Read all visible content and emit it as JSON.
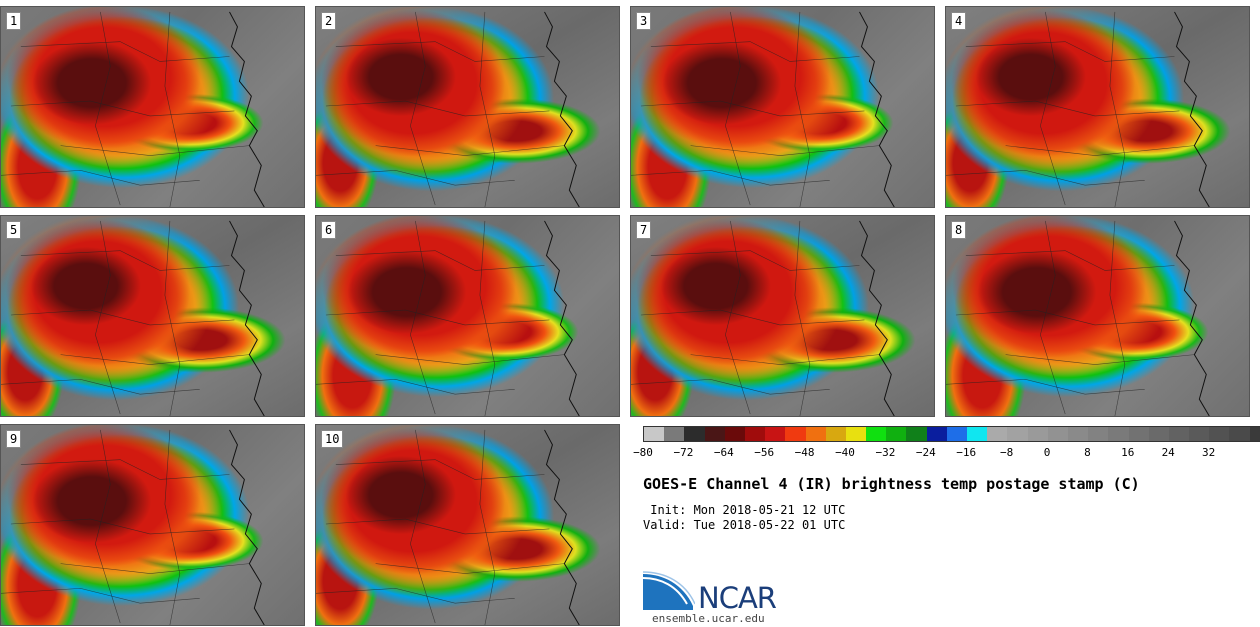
{
  "panels": [
    {
      "label": "1"
    },
    {
      "label": "2"
    },
    {
      "label": "3"
    },
    {
      "label": "4"
    },
    {
      "label": "5"
    },
    {
      "label": "6"
    },
    {
      "label": "7"
    },
    {
      "label": "8"
    },
    {
      "label": "9"
    },
    {
      "label": "10"
    }
  ],
  "colorbar": {
    "colors": [
      "#c8c8c8",
      "#7a7a7a",
      "#2c2c2c",
      "#4a1616",
      "#6a0a0a",
      "#a00c0c",
      "#c81414",
      "#f03a10",
      "#f07010",
      "#d8a810",
      "#e8e010",
      "#10e010",
      "#10b010",
      "#10801a",
      "#0a1e9e",
      "#1e6ee8",
      "#10e6f0",
      "#aaaaaa",
      "#a2a2a2",
      "#9a9a9a",
      "#929292",
      "#8a8a8a",
      "#828282",
      "#7a7a7a",
      "#727272",
      "#6a6a6a",
      "#626262",
      "#5a5a5a",
      "#525252",
      "#4a4a4a",
      "#3a3a3a",
      "#2a2a2a"
    ],
    "ticks": [
      "−80",
      "−72",
      "−64",
      "−56",
      "−48",
      "−40",
      "−32",
      "−24",
      "−16",
      "−8",
      "0",
      "8",
      "16",
      "24",
      "32"
    ]
  },
  "title": "GOES-E Channel 4 (IR) brightness temp postage stamp (C)",
  "init": " Init: Mon 2018-05-21 12 UTC",
  "valid": "Valid: Tue 2018-05-22 01 UTC",
  "logo": {
    "name": "ncar-logo",
    "text": "NCAR",
    "color": "#1e73be"
  },
  "site": "ensemble.ucar.edu"
}
